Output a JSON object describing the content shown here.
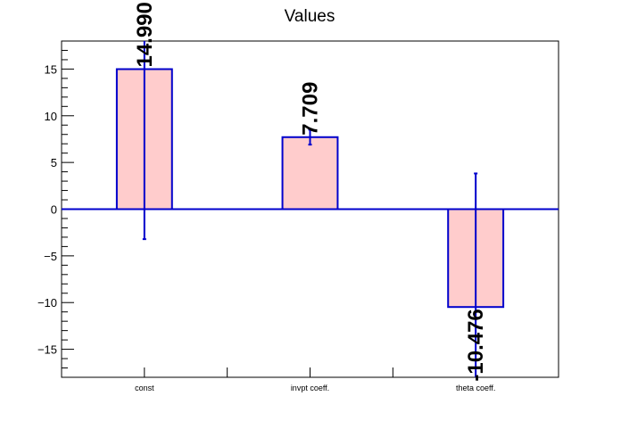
{
  "chart_data": {
    "type": "bar",
    "title": "Values",
    "categories": [
      "const",
      "invpt coeff.",
      "theta coeff."
    ],
    "values": [
      14.99,
      7.709,
      -10.476
    ],
    "value_labels": [
      "14.990",
      "7.709",
      "-10.476"
    ],
    "errors": [
      18.2,
      0.8,
      14.3
    ],
    "ylim": [
      -18,
      18
    ],
    "yticks": [
      -15,
      -10,
      -5,
      0,
      5,
      10,
      15
    ],
    "ytick_labels": [
      "−15",
      "−10",
      "−5",
      "0",
      "5",
      "10",
      "15"
    ],
    "xlabel": "",
    "ylabel": "",
    "grid": false,
    "colors": {
      "bar_fill": "#ffcccc",
      "bar_edge": "#0000cc",
      "error_bar": "#0000cc",
      "zero_line": "#0000cc"
    }
  }
}
